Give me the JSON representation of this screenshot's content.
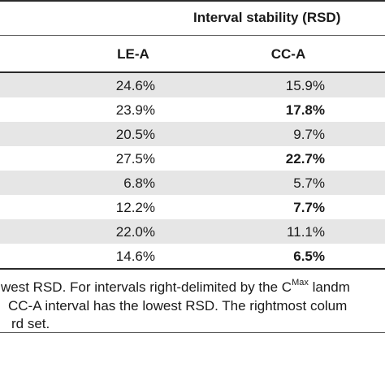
{
  "header": {
    "group_title": "Interval stability (RSD)",
    "col_lea": "LE-A",
    "col_cca": "CC-A"
  },
  "rows": [
    {
      "lea": "24.6%",
      "cca": "15.9%",
      "cca_bold": false
    },
    {
      "lea": "23.9%",
      "cca": "17.8%",
      "cca_bold": true
    },
    {
      "lea": "20.5%",
      "cca": "9.7%",
      "cca_bold": false
    },
    {
      "lea": "27.5%",
      "cca": "22.7%",
      "cca_bold": true
    },
    {
      "lea": "6.8%",
      "cca": "5.7%",
      "cca_bold": false
    },
    {
      "lea": "12.2%",
      "cca": "7.7%",
      "cca_bold": true
    },
    {
      "lea": "22.0%",
      "cca": "11.1%",
      "cca_bold": false
    },
    {
      "lea": "14.6%",
      "cca": "6.5%",
      "cca_bold": true
    }
  ],
  "footnote": {
    "line1_pre": "west RSD. For intervals right-delimited by the C",
    "line1_sup": "Max",
    "line1_post": " landm",
    "line2": "CC-A interval has the lowest RSD. The rightmost colum",
    "line3": "rd set."
  }
}
